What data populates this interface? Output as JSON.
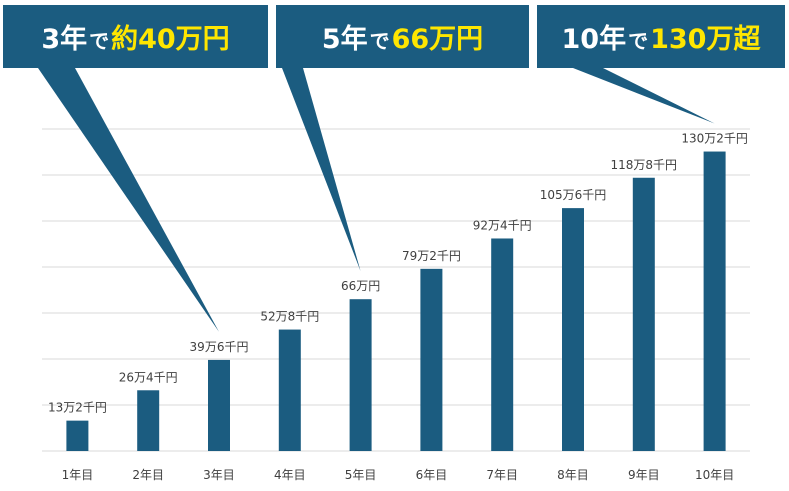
{
  "chart_data": {
    "type": "bar",
    "title": "",
    "xlabel": "",
    "ylabel": "",
    "ylim": [
      0,
      140
    ],
    "grid": true,
    "categories": [
      "1年目",
      "2年目",
      "3年目",
      "4年目",
      "5年目",
      "6年目",
      "7年目",
      "8年目",
      "9年目",
      "10年目"
    ],
    "values": [
      13.2,
      26.4,
      39.6,
      52.8,
      66,
      79.2,
      92.4,
      105.6,
      118.8,
      130.2
    ],
    "data_labels": [
      "13万2千円",
      "26万4千円",
      "39万6千円",
      "52万8千円",
      "66万円",
      "79万2千円",
      "92万4千円",
      "105万6千円",
      "118万8千円",
      "130万2千円"
    ],
    "bar_color": "#1b5c80",
    "annotations": [
      {
        "target_category": "3年目",
        "prefix": "3年",
        "particle": "で",
        "highlight": "約40万円"
      },
      {
        "target_category": "5年目",
        "prefix": "5年",
        "particle": "で",
        "highlight": "66万円"
      },
      {
        "target_category": "10年目",
        "prefix": "10年",
        "particle": "で",
        "highlight": "130万超"
      }
    ]
  },
  "colors": {
    "callout_bg": "#1b5c80",
    "callout_text": "#ffffff",
    "callout_highlight": "#ffe600",
    "gridline": "#d9d9d9",
    "label_text": "#404040"
  }
}
